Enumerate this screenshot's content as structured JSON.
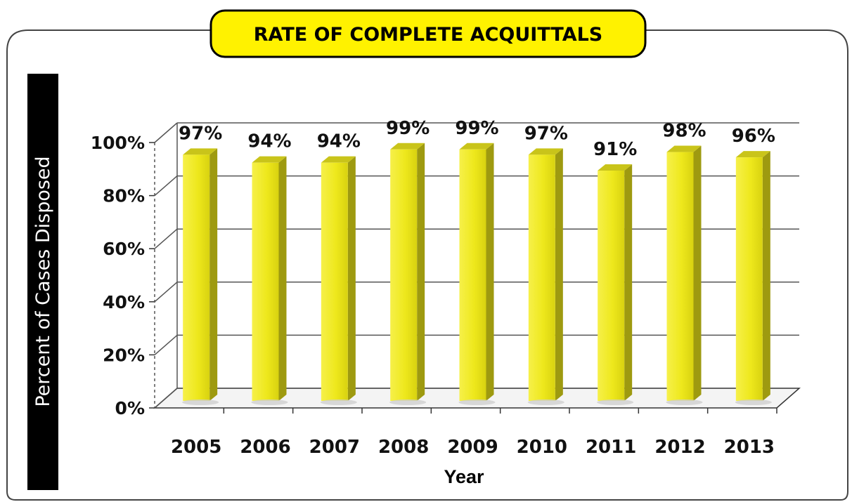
{
  "chart_data": {
    "type": "bar",
    "title": "RATE OF COMPLETE ACQUITTALS",
    "xlabel": "Year",
    "ylabel": "Percent of Cases Disposed",
    "categories": [
      "2005",
      "2006",
      "2007",
      "2008",
      "2009",
      "2010",
      "2011",
      "2012",
      "2013"
    ],
    "values": [
      97,
      94,
      94,
      99,
      99,
      97,
      91,
      98,
      96
    ],
    "data_labels": [
      "97%",
      "94%",
      "94%",
      "99%",
      "99%",
      "97%",
      "91%",
      "98%",
      "96%"
    ],
    "ylim": [
      0,
      100
    ],
    "yticks": [
      "0%",
      "20%",
      "40%",
      "60%",
      "80%",
      "100%"
    ],
    "grid": true,
    "style": "3d-bar",
    "colors": {
      "bar_front": "#f2ec1c",
      "bar_side": "#9e9a10",
      "bar_top": "#c9c41a",
      "title_badge": "#fff200",
      "ylabel_band": "#000000"
    }
  }
}
